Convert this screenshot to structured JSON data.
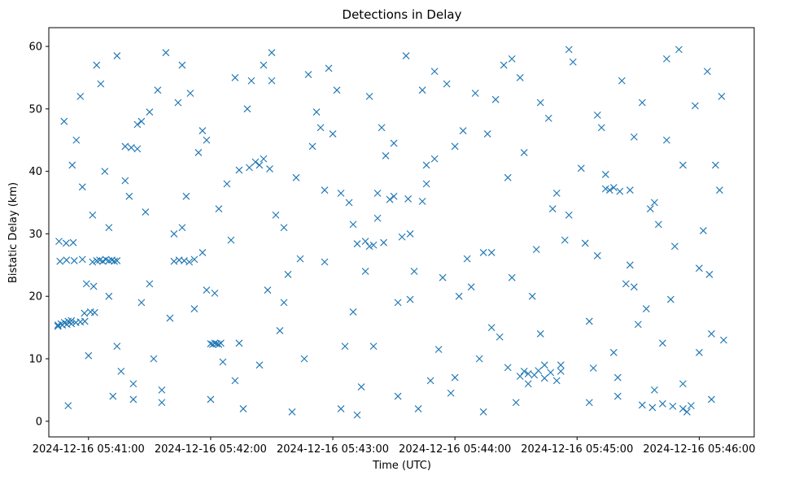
{
  "chart_data": {
    "type": "scatter",
    "title": "Detections in Delay",
    "xlabel": "Time (UTC)",
    "ylabel": "Bistatic Delay (km)",
    "marker": "x",
    "color": "#1f77b4",
    "grid": false,
    "xlim_seconds": [
      -19.5,
      327
    ],
    "ylim": [
      -2.5,
      63
    ],
    "x_reference": "2024-12-16 05:41:00",
    "x_units": "seconds after 2024-12-16 05:41:00",
    "xticks": [
      {
        "value": 0,
        "label": "2024-12-16 05:41:00"
      },
      {
        "value": 60,
        "label": "2024-12-16 05:42:00"
      },
      {
        "value": 120,
        "label": "2024-12-16 05:43:00"
      },
      {
        "value": 180,
        "label": "2024-12-16 05:44:00"
      },
      {
        "value": 240,
        "label": "2024-12-16 05:45:00"
      },
      {
        "value": 300,
        "label": "2024-12-16 05:46:00"
      }
    ],
    "yticks": [
      {
        "value": 0,
        "label": "0"
      },
      {
        "value": 10,
        "label": "10"
      },
      {
        "value": 20,
        "label": "20"
      },
      {
        "value": 30,
        "label": "30"
      },
      {
        "value": 40,
        "label": "40"
      },
      {
        "value": 50,
        "label": "50"
      },
      {
        "value": 60,
        "label": "60"
      }
    ],
    "series": [
      {
        "name": "Detections",
        "x": [
          -15.0,
          -12.8,
          -10.6,
          -8.4,
          -6.2,
          -4.0,
          -1.8,
          -15.0,
          -13.5,
          -11.8,
          -10.0,
          -8.4,
          -14.5,
          -11.0,
          -7.5,
          -14.0,
          -10.8,
          -7.0,
          -3.0,
          2.0,
          4.0,
          5.5,
          7.0,
          8.5,
          10.0,
          11.5,
          12.7,
          14.0,
          -2.0,
          1.0,
          3.0,
          -1.0,
          2.5,
          60.0,
          61.0,
          62.0,
          63.0,
          64.0,
          65.0,
          42.0,
          44.5,
          47.0,
          49.5,
          52.0,
          18.0,
          21.0,
          24.0,
          4.0,
          14.0,
          26.0,
          36.0,
          48.0,
          58.0,
          72.0,
          84.0,
          96.0,
          110.0,
          124.0,
          138.0,
          152.0,
          166.0,
          180.0,
          194.0,
          208.0,
          222.0,
          236.0,
          250.0,
          264.0,
          278.0,
          292.0,
          304.0,
          312.0,
          8.0,
          22.0,
          34.0,
          52.0,
          70.0,
          90.0,
          106.0,
          128.0,
          144.0,
          160.0,
          176.0,
          198.0,
          214.0,
          232.0,
          256.0,
          272.0,
          288.0,
          306.0,
          -6.0,
          10.0,
          30.0,
          46.0,
          66.0,
          86.0,
          104.0,
          122.0,
          140.0,
          158.0,
          178.0,
          196.0,
          218.0,
          238.0,
          258.0,
          276.0,
          296.0,
          311.0,
          0.0,
          18.0,
          38.0,
          56.0,
          78.0,
          94.0,
          116.0,
          134.0,
          150.0,
          170.0,
          188.0,
          206.0,
          226.0,
          246.0,
          266.0,
          284.0,
          300.0,
          12.0,
          28.0,
          44.0,
          62.0,
          82.0,
          100.0,
          118.0,
          136.0,
          154.0,
          172.0,
          190.0,
          210.0,
          230.0,
          248.0,
          268.0,
          286.0,
          302.0,
          -3.0,
          16.0,
          40.0,
          58.0,
          76.0,
          92.0,
          112.0,
          130.0,
          148.0,
          168.0,
          186.0,
          204.0,
          224.0,
          244.0,
          262.0,
          282.0,
          308.0,
          6.0,
          24.0,
          42.0,
          68.0,
          88.0,
          108.0,
          126.0,
          146.0,
          164.0,
          184.0,
          202.0,
          220.0,
          242.0,
          260.0,
          280.0,
          298.0,
          -12.0,
          20.0,
          36.0,
          54.0,
          74.0,
          98.0,
          120.0,
          142.0,
          162.0,
          182.0,
          200.0,
          216.0,
          234.0,
          254.0,
          274.0,
          294.0,
          310.0,
          2.0,
          26.0,
          50.0,
          72.0,
          102.0,
          132.0,
          156.0,
          174.0,
          192.0,
          212.0,
          228.0,
          252.0,
          270.0,
          290.0,
          305.0,
          -10.0,
          14.0,
          32.0,
          64.0,
          80.0,
          114.0,
          138.0,
          166.0,
          194.0,
          208.0,
          236.0,
          260.0,
          278.0,
          300.0,
          -8.0,
          30.0,
          60.0,
          96.0,
          124.0,
          152.0,
          180.0,
          222.0,
          250.0,
          292.0,
          10.0,
          46.0,
          86.0,
          116.0,
          158.0,
          198.0,
          232.0,
          268.0,
          306.0,
          -4.0,
          22.0,
          56.0,
          90.0,
          130.0,
          170.0,
          214.0,
          246.0,
          284.0,
          212.0,
          216.0,
          219.0,
          221.0,
          224.0,
          227.0,
          206.0,
          230.0,
          142.0,
          150.0,
          157.0,
          164.0,
          132.0,
          136.0,
          140.0,
          145.0,
          254.0,
          261.0,
          266.0,
          258.0,
          74.0,
          79.0,
          84.0,
          89.0,
          272.0,
          277.0,
          282.0,
          287.0,
          292.0
        ],
        "y": [
          15.2,
          15.4,
          15.5,
          15.6,
          15.8,
          15.9,
          16.0,
          15.4,
          15.6,
          15.8,
          16.0,
          16.1,
          28.8,
          28.5,
          28.6,
          25.6,
          25.8,
          25.7,
          25.9,
          25.5,
          25.7,
          25.8,
          25.6,
          25.9,
          25.7,
          25.8,
          25.6,
          25.7,
          17.3,
          17.5,
          17.4,
          22.0,
          21.6,
          12.4,
          12.3,
          12.5,
          12.4,
          12.3,
          12.5,
          25.6,
          25.8,
          25.7,
          25.5,
          25.9,
          44.0,
          43.8,
          43.6,
          57.0,
          12.0,
          48.0,
          3.0,
          36.0,
          21.0,
          55.0,
          9.0,
          31.0,
          44.0,
          2.0,
          52.0,
          19.0,
          38.0,
          7.0,
          27.0,
          58.0,
          14.0,
          33.0,
          49.0,
          22.0,
          5.0,
          41.0,
          56.0,
          13.0,
          40.0,
          6.0,
          53.0,
          18.0,
          29.0,
          59.0,
          10.0,
          35.0,
          47.0,
          24.0,
          54.0,
          15.0,
          43.0,
          8.0,
          37.0,
          51.0,
          28.0,
          3.5,
          45.0,
          31.0,
          22.0,
          57.0,
          9.5,
          42.0,
          26.0,
          53.0,
          12.0,
          30.0,
          4.5,
          46.0,
          20.0,
          57.5,
          11.0,
          34.0,
          2.5,
          52.0,
          10.5,
          38.5,
          59.0,
          27.0,
          50.0,
          14.5,
          37.0,
          5.5,
          44.5,
          56.0,
          21.5,
          39.0,
          48.5,
          16.0,
          25.0,
          58.0,
          24.5,
          4.0,
          33.5,
          51.0,
          20.5,
          41.5,
          1.5,
          56.5,
          24.0,
          29.5,
          11.5,
          52.5,
          3.0,
          36.5,
          8.5,
          45.5,
          19.5,
          30.5,
          37.5,
          8.0,
          16.5,
          45.0,
          2.0,
          33.0,
          49.5,
          17.5,
          35.5,
          6.5,
          26.0,
          57.0,
          9.0,
          28.5,
          54.5,
          12.5,
          41.0,
          54.0,
          47.5,
          30.0,
          38.0,
          21.0,
          55.5,
          12.0,
          42.5,
          53.0,
          46.5,
          13.5,
          27.5,
          40.5,
          7.0,
          31.5,
          50.5,
          48.0,
          36.0,
          5.0,
          43.0,
          12.5,
          23.5,
          46.0,
          32.5,
          2.0,
          20.0,
          51.5,
          6.0,
          29.0,
          39.5,
          18.0,
          1.5,
          37.0,
          33.0,
          19.0,
          52.5,
          6.5,
          39.0,
          1.0,
          58.5,
          23.0,
          10.0,
          55.0,
          34.0,
          47.0,
          15.5,
          59.5,
          23.5,
          2.5,
          58.5,
          10.0,
          34.0,
          54.5,
          47.0,
          28.0,
          41.0,
          1.5,
          23.0,
          59.5,
          4.0,
          35.0,
          11.0,
          41.0,
          49.5,
          3.5,
          19.0,
          36.5,
          4.0,
          44.0,
          51.0,
          26.5,
          6.0,
          20.0,
          31.0,
          57.0,
          25.5,
          19.5,
          27.0,
          9.0,
          21.5,
          14.0,
          52.0,
          3.5,
          46.5,
          54.5,
          31.5,
          42.0,
          8.0,
          3.0,
          45.0,
          7.2,
          7.6,
          7.4,
          8.1,
          6.9,
          7.8,
          8.6,
          6.5,
          36.5,
          36.0,
          35.6,
          35.2,
          28.4,
          28.8,
          28.2,
          28.6,
          37.2,
          36.8,
          37.0,
          37.4,
          40.2,
          40.6,
          41.0,
          40.4,
          2.6,
          2.2,
          2.8,
          2.4,
          2.0
        ]
      }
    ]
  }
}
